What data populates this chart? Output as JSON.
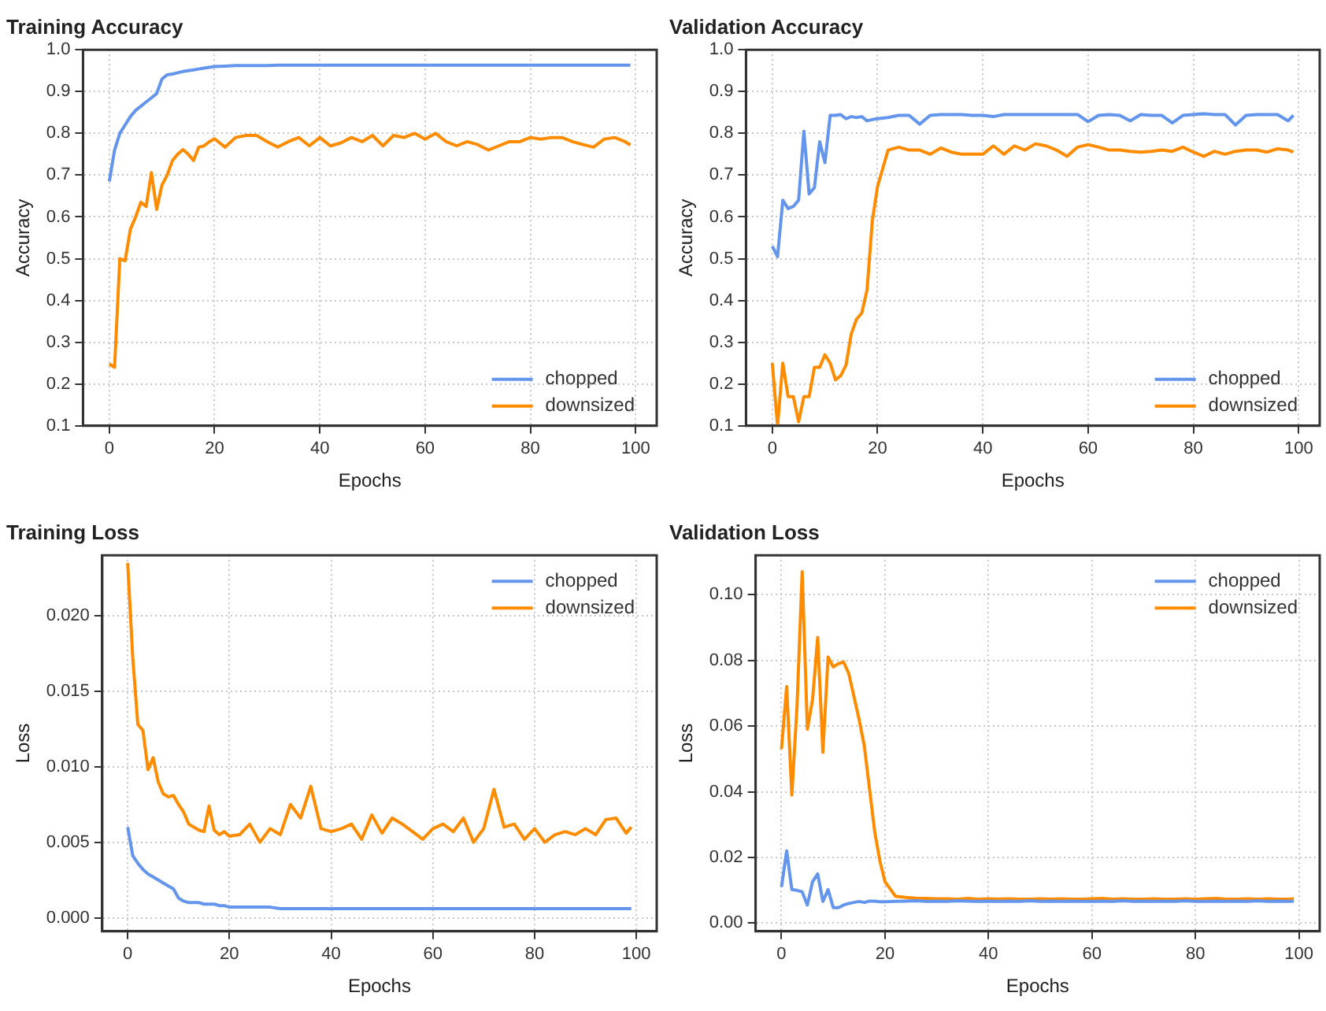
{
  "chart_data": [
    {
      "type": "line",
      "title": "Training Accuracy",
      "xlabel": "Epochs",
      "ylabel": "Accuracy",
      "x": [
        0,
        1,
        2,
        3,
        4,
        5,
        6,
        7,
        8,
        9,
        10,
        11,
        12,
        13,
        14,
        15,
        16,
        17,
        18,
        19,
        20,
        22,
        24,
        26,
        28,
        30,
        32,
        34,
        36,
        38,
        40,
        42,
        44,
        46,
        48,
        50,
        52,
        54,
        56,
        58,
        60,
        62,
        64,
        66,
        68,
        70,
        72,
        74,
        76,
        78,
        80,
        82,
        84,
        86,
        88,
        90,
        92,
        94,
        96,
        98,
        99
      ],
      "series": [
        {
          "name": "chopped",
          "color": "#6495ed",
          "values": [
            0.685,
            0.76,
            0.8,
            0.82,
            0.84,
            0.855,
            0.865,
            0.875,
            0.885,
            0.895,
            0.93,
            0.94,
            0.942,
            0.945,
            0.948,
            0.95,
            0.952,
            0.954,
            0.956,
            0.958,
            0.96,
            0.961,
            0.962,
            0.962,
            0.962,
            0.962,
            0.963,
            0.963,
            0.963,
            0.963,
            0.963,
            0.963,
            0.963,
            0.963,
            0.963,
            0.963,
            0.963,
            0.963,
            0.963,
            0.963,
            0.963,
            0.963,
            0.963,
            0.963,
            0.963,
            0.963,
            0.963,
            0.963,
            0.963,
            0.963,
            0.963,
            0.963,
            0.963,
            0.963,
            0.963,
            0.963,
            0.963,
            0.963,
            0.963,
            0.963,
            0.963
          ]
        },
        {
          "name": "downsized",
          "color": "#ff8c00",
          "values": [
            0.248,
            0.24,
            0.5,
            0.495,
            0.57,
            0.6,
            0.635,
            0.625,
            0.706,
            0.618,
            0.676,
            0.7,
            0.735,
            0.75,
            0.761,
            0.75,
            0.735,
            0.767,
            0.77,
            0.78,
            0.787,
            0.767,
            0.79,
            0.795,
            0.795,
            0.78,
            0.767,
            0.78,
            0.79,
            0.77,
            0.79,
            0.77,
            0.777,
            0.79,
            0.78,
            0.795,
            0.77,
            0.795,
            0.79,
            0.8,
            0.786,
            0.8,
            0.78,
            0.77,
            0.78,
            0.773,
            0.76,
            0.77,
            0.78,
            0.78,
            0.79,
            0.786,
            0.79,
            0.79,
            0.78,
            0.773,
            0.767,
            0.786,
            0.79,
            0.78,
            0.772
          ]
        }
      ],
      "xlim": [
        -5,
        104
      ],
      "xticks": [
        0,
        20,
        40,
        60,
        80,
        100
      ],
      "ylim": [
        0.1,
        1
      ],
      "yticks": [
        0.1,
        0.2,
        0.3,
        0.4,
        0.5,
        0.6,
        0.7,
        0.8,
        0.9,
        {
          "value": 1,
          "label": "1.0"
        }
      ],
      "grid": true,
      "legend": "bottom right",
      "marker": "none",
      "line_style": "solid"
    },
    {
      "type": "line",
      "title": "Validation Accuracy",
      "xlabel": "Epochs",
      "ylabel": "Accuracy",
      "x": [
        0,
        1,
        2,
        3,
        4,
        5,
        6,
        7,
        8,
        9,
        10,
        11,
        12,
        13,
        14,
        15,
        16,
        17,
        18,
        19,
        20,
        22,
        24,
        26,
        28,
        30,
        32,
        34,
        36,
        38,
        40,
        42,
        44,
        46,
        48,
        50,
        52,
        54,
        56,
        58,
        60,
        62,
        64,
        66,
        68,
        70,
        72,
        74,
        76,
        78,
        80,
        82,
        84,
        86,
        88,
        90,
        92,
        94,
        96,
        98,
        99
      ],
      "series": [
        {
          "name": "chopped",
          "color": "#6495ed",
          "values": [
            0.53,
            0.505,
            0.64,
            0.62,
            0.625,
            0.64,
            0.805,
            0.655,
            0.67,
            0.78,
            0.73,
            0.843,
            0.843,
            0.845,
            0.835,
            0.84,
            0.838,
            0.84,
            0.83,
            0.833,
            0.835,
            0.838,
            0.843,
            0.843,
            0.822,
            0.843,
            0.845,
            0.845,
            0.845,
            0.843,
            0.843,
            0.84,
            0.845,
            0.845,
            0.845,
            0.845,
            0.845,
            0.845,
            0.845,
            0.845,
            0.828,
            0.843,
            0.845,
            0.843,
            0.83,
            0.845,
            0.843,
            0.843,
            0.825,
            0.843,
            0.845,
            0.847,
            0.845,
            0.845,
            0.82,
            0.843,
            0.845,
            0.845,
            0.845,
            0.83,
            0.843
          ]
        },
        {
          "name": "downsized",
          "color": "#ff8c00",
          "values": [
            0.25,
            0.1,
            0.25,
            0.17,
            0.17,
            0.11,
            0.17,
            0.17,
            0.24,
            0.24,
            0.27,
            0.25,
            0.21,
            0.22,
            0.245,
            0.32,
            0.355,
            0.37,
            0.425,
            0.59,
            0.673,
            0.76,
            0.767,
            0.76,
            0.76,
            0.75,
            0.765,
            0.755,
            0.75,
            0.75,
            0.75,
            0.77,
            0.75,
            0.77,
            0.76,
            0.775,
            0.77,
            0.76,
            0.745,
            0.767,
            0.773,
            0.767,
            0.76,
            0.76,
            0.757,
            0.755,
            0.757,
            0.76,
            0.757,
            0.767,
            0.755,
            0.745,
            0.757,
            0.75,
            0.757,
            0.76,
            0.76,
            0.755,
            0.763,
            0.76,
            0.755
          ]
        }
      ],
      "xlim": [
        -5,
        104
      ],
      "xticks": [
        0,
        20,
        40,
        60,
        80,
        100
      ],
      "ylim": [
        0.1,
        1
      ],
      "yticks": [
        0.1,
        0.2,
        0.3,
        0.4,
        0.5,
        0.6,
        0.7,
        0.8,
        0.9,
        {
          "value": 1,
          "label": "1.0"
        }
      ],
      "grid": true,
      "legend": "bottom right",
      "marker": "none",
      "line_style": "solid"
    },
    {
      "type": "line",
      "title": "Training Loss",
      "xlabel": "Epochs",
      "ylabel": "Loss",
      "x": [
        0,
        1,
        2,
        3,
        4,
        5,
        6,
        7,
        8,
        9,
        10,
        11,
        12,
        13,
        14,
        15,
        16,
        17,
        18,
        19,
        20,
        22,
        24,
        26,
        28,
        30,
        32,
        34,
        36,
        38,
        40,
        42,
        44,
        46,
        48,
        50,
        52,
        54,
        56,
        58,
        60,
        62,
        64,
        66,
        68,
        70,
        72,
        74,
        76,
        78,
        80,
        82,
        84,
        86,
        88,
        90,
        92,
        94,
        96,
        98,
        99
      ],
      "series": [
        {
          "name": "chopped",
          "color": "#6495ed",
          "values": [
            0.006,
            0.0041,
            0.0036,
            0.0032,
            0.0029,
            0.0027,
            0.0025,
            0.0023,
            0.0021,
            0.0019,
            0.0013,
            0.0011,
            0.001,
            0.001,
            0.001,
            0.0009,
            0.0009,
            0.0009,
            0.0008,
            0.0008,
            0.0007,
            0.0007,
            0.0007,
            0.0007,
            0.0007,
            0.0006,
            0.0006,
            0.0006,
            0.0006,
            0.0006,
            0.0006,
            0.0006,
            0.0006,
            0.0006,
            0.0006,
            0.0006,
            0.0006,
            0.0006,
            0.0006,
            0.0006,
            0.0006,
            0.0006,
            0.0006,
            0.0006,
            0.0006,
            0.0006,
            0.0006,
            0.0006,
            0.0006,
            0.0006,
            0.0006,
            0.0006,
            0.0006,
            0.0006,
            0.0006,
            0.0006,
            0.0006,
            0.0006,
            0.0006,
            0.0006,
            0.0006
          ]
        },
        {
          "name": "downsized",
          "color": "#ff8c00",
          "values": [
            0.0235,
            0.0172,
            0.0128,
            0.0124,
            0.0098,
            0.0106,
            0.009,
            0.0082,
            0.008,
            0.0081,
            0.0075,
            0.007,
            0.0062,
            0.006,
            0.0058,
            0.0057,
            0.0074,
            0.0058,
            0.0055,
            0.0057,
            0.0054,
            0.0055,
            0.0062,
            0.005,
            0.0059,
            0.0055,
            0.0075,
            0.0066,
            0.0087,
            0.0059,
            0.0057,
            0.0059,
            0.0062,
            0.0052,
            0.0068,
            0.0056,
            0.0066,
            0.0062,
            0.0057,
            0.0052,
            0.0059,
            0.0062,
            0.0057,
            0.0066,
            0.005,
            0.0059,
            0.0085,
            0.006,
            0.0062,
            0.0052,
            0.0059,
            0.005,
            0.0055,
            0.0057,
            0.0055,
            0.0059,
            0.0055,
            0.0065,
            0.0066,
            0.0056,
            0.006
          ]
        }
      ],
      "xlim": [
        -5,
        104
      ],
      "xticks": [
        0,
        20,
        40,
        60,
        80,
        100
      ],
      "ylim": [
        -0.0009,
        0.024
      ],
      "yticks": [
        {
          "value": 0,
          "label": "0.000"
        },
        {
          "value": 0.005,
          "label": "0.005"
        },
        {
          "value": 0.01,
          "label": "0.010"
        },
        {
          "value": 0.015,
          "label": "0.015"
        },
        {
          "value": 0.02,
          "label": "0.020"
        }
      ],
      "grid": true,
      "legend": "top right",
      "marker": "none",
      "line_style": "solid"
    },
    {
      "type": "line",
      "title": "Validation Loss",
      "xlabel": "Epochs",
      "ylabel": "Loss",
      "x": [
        0,
        1,
        2,
        3,
        4,
        5,
        6,
        7,
        8,
        9,
        10,
        11,
        12,
        13,
        14,
        15,
        16,
        17,
        18,
        19,
        20,
        22,
        24,
        26,
        28,
        30,
        32,
        34,
        36,
        38,
        40,
        42,
        44,
        46,
        48,
        50,
        52,
        54,
        56,
        58,
        60,
        62,
        64,
        66,
        68,
        70,
        72,
        74,
        76,
        78,
        80,
        82,
        84,
        86,
        88,
        90,
        92,
        94,
        96,
        98,
        99
      ],
      "series": [
        {
          "name": "chopped",
          "color": "#6495ed",
          "values": [
            0.011,
            0.022,
            0.0102,
            0.01,
            0.0095,
            0.0055,
            0.0126,
            0.015,
            0.0066,
            0.0102,
            0.0047,
            0.0047,
            0.0055,
            0.006,
            0.0063,
            0.0066,
            0.0063,
            0.0067,
            0.0067,
            0.0065,
            0.0065,
            0.0066,
            0.0067,
            0.0068,
            0.0066,
            0.0067,
            0.0066,
            0.0068,
            0.0067,
            0.0066,
            0.0067,
            0.0066,
            0.0067,
            0.0066,
            0.0068,
            0.0066,
            0.0067,
            0.0066,
            0.0067,
            0.0066,
            0.0066,
            0.0067,
            0.0066,
            0.0068,
            0.0066,
            0.0067,
            0.0066,
            0.0067,
            0.0066,
            0.0068,
            0.0066,
            0.0066,
            0.0067,
            0.0066,
            0.0067,
            0.0066,
            0.0068,
            0.0066,
            0.0067,
            0.0066,
            0.0067
          ]
        },
        {
          "name": "downsized",
          "color": "#ff8c00",
          "values": [
            0.053,
            0.072,
            0.039,
            0.066,
            0.107,
            0.059,
            0.068,
            0.087,
            0.052,
            0.081,
            0.078,
            0.079,
            0.0795,
            0.076,
            0.069,
            0.062,
            0.054,
            0.041,
            0.028,
            0.019,
            0.0126,
            0.0082,
            0.0078,
            0.0076,
            0.0075,
            0.0074,
            0.0074,
            0.0073,
            0.0075,
            0.0073,
            0.0074,
            0.0073,
            0.0074,
            0.0073,
            0.0073,
            0.0074,
            0.0073,
            0.0074,
            0.0073,
            0.0073,
            0.0074,
            0.0075,
            0.0073,
            0.0074,
            0.0073,
            0.0073,
            0.0074,
            0.0073,
            0.0073,
            0.0074,
            0.0073,
            0.0074,
            0.0075,
            0.0073,
            0.0073,
            0.0074,
            0.0073,
            0.0074,
            0.0073,
            0.0073,
            0.0074
          ]
        }
      ],
      "xlim": [
        -5,
        104
      ],
      "xticks": [
        0,
        20,
        40,
        60,
        80,
        100
      ],
      "ylim": [
        -0.0025,
        0.112
      ],
      "yticks": [
        {
          "value": 0,
          "label": "0.00"
        },
        {
          "value": 0.02,
          "label": "0.02"
        },
        {
          "value": 0.04,
          "label": "0.04"
        },
        {
          "value": 0.06,
          "label": "0.06"
        },
        {
          "value": 0.08,
          "label": "0.08"
        },
        {
          "value": 0.1,
          "label": "0.10"
        }
      ],
      "grid": true,
      "legend": "top right",
      "marker": "none",
      "line_style": "solid"
    }
  ]
}
